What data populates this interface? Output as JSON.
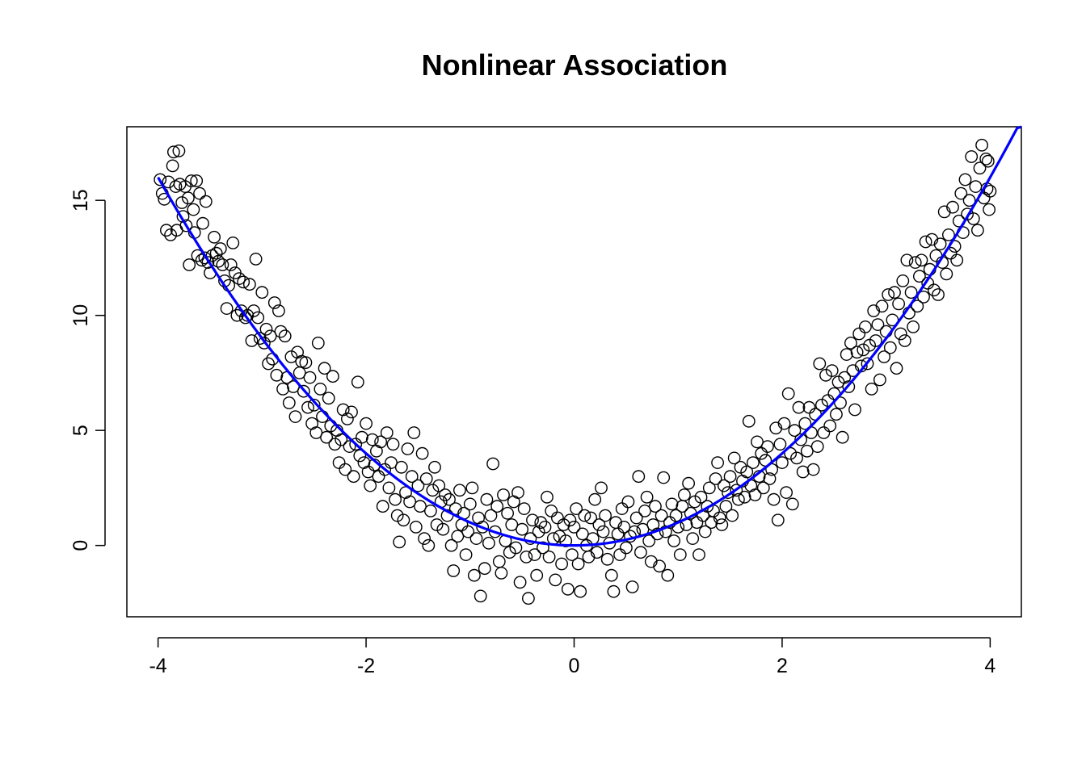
{
  "chart_data": {
    "type": "scatter",
    "title": "Nonlinear Association",
    "xlabel": "",
    "ylabel": "",
    "xlim": [
      -4.3,
      4.3
    ],
    "ylim": [
      -3.1,
      18.2
    ],
    "x_ticks": [
      -4,
      -2,
      0,
      2,
      4
    ],
    "x_tick_labels": [
      "-4",
      "-2",
      "0",
      "2",
      "4"
    ],
    "y_ticks": [
      0,
      5,
      10,
      15
    ],
    "y_tick_labels": [
      "0",
      "5",
      "10",
      "15"
    ],
    "grid": false,
    "legend": "none",
    "colors": {
      "points": "#000000",
      "fit_line": "#0000FF"
    },
    "fit_line": {
      "description_in_image": "curve",
      "y_equals": "x^2",
      "x_range": [
        -4.0,
        4.3
      ]
    },
    "points": [
      [
        -3.98,
        15.9
      ],
      [
        -3.96,
        15.3
      ],
      [
        -3.94,
        15.05
      ],
      [
        -3.92,
        13.7
      ],
      [
        -3.9,
        15.8
      ],
      [
        -3.88,
        13.5
      ],
      [
        -3.86,
        16.5
      ],
      [
        -3.85,
        17.1
      ],
      [
        -3.83,
        15.6
      ],
      [
        -3.82,
        13.7
      ],
      [
        -3.8,
        17.15
      ],
      [
        -3.79,
        15.7
      ],
      [
        -3.77,
        14.9
      ],
      [
        -3.76,
        14.3
      ],
      [
        -3.74,
        15.6
      ],
      [
        -3.73,
        13.9
      ],
      [
        -3.71,
        15.1
      ],
      [
        -3.7,
        12.2
      ],
      [
        -3.68,
        15.85
      ],
      [
        -3.66,
        14.6
      ],
      [
        -3.65,
        13.6
      ],
      [
        -3.63,
        15.85
      ],
      [
        -3.62,
        12.6
      ],
      [
        -3.6,
        15.3
      ],
      [
        -3.58,
        12.4
      ],
      [
        -3.57,
        14.0
      ],
      [
        -3.55,
        12.5
      ],
      [
        -3.54,
        14.95
      ],
      [
        -3.52,
        12.3
      ],
      [
        -3.5,
        11.85
      ],
      [
        -3.48,
        12.6
      ],
      [
        -3.46,
        13.4
      ],
      [
        -3.44,
        12.7
      ],
      [
        -3.42,
        12.35
      ],
      [
        -3.4,
        12.9
      ],
      [
        -3.38,
        12.2
      ],
      [
        -3.36,
        11.5
      ],
      [
        -3.34,
        10.3
      ],
      [
        -3.32,
        11.3
      ],
      [
        -3.3,
        12.2
      ],
      [
        -3.28,
        13.15
      ],
      [
        -3.26,
        11.85
      ],
      [
        -3.24,
        10.0
      ],
      [
        -3.22,
        11.6
      ],
      [
        -3.2,
        10.2
      ],
      [
        -3.18,
        11.45
      ],
      [
        -3.16,
        9.9
      ],
      [
        -3.14,
        10.0
      ],
      [
        -3.12,
        11.35
      ],
      [
        -3.1,
        8.9
      ],
      [
        -3.08,
        10.2
      ],
      [
        -3.06,
        12.45
      ],
      [
        -3.04,
        9.9
      ],
      [
        -3.02,
        9.0
      ],
      [
        -3.0,
        11.0
      ],
      [
        -2.98,
        8.8
      ],
      [
        -2.96,
        9.4
      ],
      [
        -2.94,
        7.9
      ],
      [
        -2.92,
        9.1
      ],
      [
        -2.9,
        8.1
      ],
      [
        -2.88,
        10.55
      ],
      [
        -2.86,
        7.4
      ],
      [
        -2.84,
        10.2
      ],
      [
        -2.82,
        9.3
      ],
      [
        -2.8,
        6.8
      ],
      [
        -2.78,
        9.1
      ],
      [
        -2.76,
        7.3
      ],
      [
        -2.74,
        6.2
      ],
      [
        -2.72,
        8.2
      ],
      [
        -2.7,
        6.9
      ],
      [
        -2.68,
        5.6
      ],
      [
        -2.66,
        8.4
      ],
      [
        -2.64,
        7.5
      ],
      [
        -2.62,
        8.0
      ],
      [
        -2.6,
        6.7
      ],
      [
        -2.58,
        7.95
      ],
      [
        -2.56,
        6.0
      ],
      [
        -2.54,
        7.3
      ],
      [
        -2.52,
        5.3
      ],
      [
        -2.5,
        6.1
      ],
      [
        -2.48,
        4.9
      ],
      [
        -2.46,
        8.8
      ],
      [
        -2.44,
        6.8
      ],
      [
        -2.42,
        5.6
      ],
      [
        -2.4,
        7.7
      ],
      [
        -2.38,
        4.7
      ],
      [
        -2.36,
        6.4
      ],
      [
        -2.34,
        5.2
      ],
      [
        -2.32,
        7.35
      ],
      [
        -2.3,
        4.4
      ],
      [
        -2.28,
        5.0
      ],
      [
        -2.26,
        3.6
      ],
      [
        -2.24,
        4.6
      ],
      [
        -2.22,
        5.9
      ],
      [
        -2.2,
        3.3
      ],
      [
        -2.18,
        5.5
      ],
      [
        -2.16,
        4.3
      ],
      [
        -2.14,
        5.8
      ],
      [
        -2.12,
        3.0
      ],
      [
        -2.1,
        4.4
      ],
      [
        -2.08,
        7.1
      ],
      [
        -2.06,
        3.9
      ],
      [
        -2.04,
        4.7
      ],
      [
        -2.02,
        3.6
      ],
      [
        -2.0,
        5.3
      ],
      [
        -1.98,
        3.2
      ],
      [
        -1.96,
        2.6
      ],
      [
        -1.94,
        4.6
      ],
      [
        -1.92,
        3.5
      ],
      [
        -1.9,
        4.1
      ],
      [
        -1.88,
        3.0
      ],
      [
        -1.86,
        4.5
      ],
      [
        -1.84,
        1.7
      ],
      [
        -1.82,
        3.3
      ],
      [
        -1.8,
        4.9
      ],
      [
        -1.78,
        2.5
      ],
      [
        -1.76,
        3.6
      ],
      [
        -1.74,
        4.4
      ],
      [
        -1.72,
        2.0
      ],
      [
        -1.7,
        1.3
      ],
      [
        -1.68,
        0.15
      ],
      [
        -1.66,
        3.4
      ],
      [
        -1.64,
        1.1
      ],
      [
        -1.62,
        2.3
      ],
      [
        -1.6,
        4.2
      ],
      [
        -1.58,
        1.9
      ],
      [
        -1.56,
        3.0
      ],
      [
        -1.54,
        4.9
      ],
      [
        -1.52,
        0.8
      ],
      [
        -1.5,
        2.6
      ],
      [
        -1.48,
        1.7
      ],
      [
        -1.46,
        4.0
      ],
      [
        -1.44,
        0.3
      ],
      [
        -1.42,
        2.9
      ],
      [
        -1.4,
        0.0
      ],
      [
        -1.38,
        1.5
      ],
      [
        -1.36,
        2.4
      ],
      [
        -1.34,
        3.4
      ],
      [
        -1.32,
        0.9
      ],
      [
        -1.3,
        2.6
      ],
      [
        -1.28,
        1.9
      ],
      [
        -1.26,
        0.7
      ],
      [
        -1.24,
        2.2
      ],
      [
        -1.22,
        1.3
      ],
      [
        -1.2,
        2.0
      ],
      [
        -1.18,
        0.0
      ],
      [
        -1.16,
        -1.1
      ],
      [
        -1.14,
        1.6
      ],
      [
        -1.12,
        0.4
      ],
      [
        -1.1,
        2.4
      ],
      [
        -1.08,
        0.9
      ],
      [
        -1.06,
        1.4
      ],
      [
        -1.04,
        -0.4
      ],
      [
        -1.02,
        0.6
      ],
      [
        -1.0,
        1.8
      ],
      [
        -0.98,
        2.5
      ],
      [
        -0.96,
        -1.3
      ],
      [
        -0.94,
        0.3
      ],
      [
        -0.92,
        1.2
      ],
      [
        -0.9,
        -2.2
      ],
      [
        -0.88,
        0.8
      ],
      [
        -0.86,
        -1.0
      ],
      [
        -0.84,
        2.0
      ],
      [
        -0.82,
        0.1
      ],
      [
        -0.8,
        1.3
      ],
      [
        -0.78,
        3.55
      ],
      [
        -0.76,
        0.6
      ],
      [
        -0.74,
        1.7
      ],
      [
        -0.72,
        -0.7
      ],
      [
        -0.7,
        -1.2
      ],
      [
        -0.68,
        2.2
      ],
      [
        -0.66,
        0.2
      ],
      [
        -0.64,
        1.4
      ],
      [
        -0.62,
        -0.3
      ],
      [
        -0.6,
        0.9
      ],
      [
        -0.58,
        1.9
      ],
      [
        -0.56,
        -0.1
      ],
      [
        -0.54,
        2.3
      ],
      [
        -0.52,
        -1.6
      ],
      [
        -0.5,
        0.7
      ],
      [
        -0.48,
        1.6
      ],
      [
        -0.46,
        -0.5
      ],
      [
        -0.44,
        -2.3
      ],
      [
        -0.42,
        0.3
      ],
      [
        -0.4,
        1.1
      ],
      [
        -0.38,
        -0.4
      ],
      [
        -0.36,
        -1.3
      ],
      [
        -0.34,
        0.6
      ],
      [
        -0.32,
        1.0
      ],
      [
        -0.3,
        -0.1
      ],
      [
        -0.28,
        0.8
      ],
      [
        -0.26,
        2.1
      ],
      [
        -0.24,
        -0.5
      ],
      [
        -0.22,
        1.5
      ],
      [
        -0.2,
        0.3
      ],
      [
        -0.18,
        -1.5
      ],
      [
        -0.16,
        1.2
      ],
      [
        -0.14,
        0.4
      ],
      [
        -0.12,
        -0.8
      ],
      [
        -0.1,
        0.9
      ],
      [
        -0.08,
        0.2
      ],
      [
        -0.06,
        -1.9
      ],
      [
        -0.04,
        1.1
      ],
      [
        -0.02,
        -0.4
      ],
      [
        0.0,
        0.8
      ],
      [
        0.02,
        1.6
      ],
      [
        0.04,
        -0.8
      ],
      [
        0.06,
        -2.0
      ],
      [
        0.08,
        0.5
      ],
      [
        0.1,
        1.3
      ],
      [
        0.12,
        0.0
      ],
      [
        0.14,
        -0.5
      ],
      [
        0.16,
        1.2
      ],
      [
        0.18,
        0.3
      ],
      [
        0.2,
        2.0
      ],
      [
        0.22,
        -0.3
      ],
      [
        0.24,
        0.9
      ],
      [
        0.26,
        2.5
      ],
      [
        0.28,
        0.6
      ],
      [
        0.3,
        1.3
      ],
      [
        0.32,
        -0.6
      ],
      [
        0.34,
        0.1
      ],
      [
        0.36,
        -1.3
      ],
      [
        0.38,
        -2.0
      ],
      [
        0.4,
        1.0
      ],
      [
        0.42,
        0.5
      ],
      [
        0.44,
        -0.4
      ],
      [
        0.46,
        1.6
      ],
      [
        0.48,
        0.8
      ],
      [
        0.5,
        -0.1
      ],
      [
        0.52,
        1.9
      ],
      [
        0.54,
        0.4
      ],
      [
        0.56,
        -1.8
      ],
      [
        0.58,
        0.6
      ],
      [
        0.6,
        1.2
      ],
      [
        0.62,
        3.0
      ],
      [
        0.64,
        -0.3
      ],
      [
        0.66,
        0.7
      ],
      [
        0.68,
        1.5
      ],
      [
        0.7,
        2.1
      ],
      [
        0.72,
        0.2
      ],
      [
        0.74,
        -0.7
      ],
      [
        0.76,
        0.9
      ],
      [
        0.78,
        1.7
      ],
      [
        0.8,
        0.5
      ],
      [
        0.82,
        -0.9
      ],
      [
        0.84,
        1.3
      ],
      [
        0.86,
        2.95
      ],
      [
        0.88,
        0.6
      ],
      [
        0.9,
        -1.3
      ],
      [
        0.92,
        1.0
      ],
      [
        0.94,
        1.8
      ],
      [
        0.96,
        0.2
      ],
      [
        0.98,
        1.3
      ],
      [
        1.0,
        0.8
      ],
      [
        1.02,
        -0.4
      ],
      [
        1.04,
        1.7
      ],
      [
        1.06,
        2.2
      ],
      [
        1.08,
        0.9
      ],
      [
        1.1,
        2.7
      ],
      [
        1.12,
        1.4
      ],
      [
        1.14,
        0.3
      ],
      [
        1.16,
        1.9
      ],
      [
        1.18,
        1.0
      ],
      [
        1.2,
        -0.4
      ],
      [
        1.22,
        2.1
      ],
      [
        1.24,
        1.3
      ],
      [
        1.26,
        0.6
      ],
      [
        1.28,
        1.7
      ],
      [
        1.3,
        2.5
      ],
      [
        1.32,
        1.0
      ],
      [
        1.34,
        1.5
      ],
      [
        1.36,
        2.9
      ],
      [
        1.38,
        3.6
      ],
      [
        1.4,
        1.2
      ],
      [
        1.42,
        0.9
      ],
      [
        1.44,
        2.6
      ],
      [
        1.46,
        1.7
      ],
      [
        1.48,
        2.3
      ],
      [
        1.5,
        3.0
      ],
      [
        1.52,
        1.3
      ],
      [
        1.54,
        3.8
      ],
      [
        1.56,
        2.4
      ],
      [
        1.58,
        2.0
      ],
      [
        1.6,
        3.4
      ],
      [
        1.62,
        2.8
      ],
      [
        1.64,
        2.1
      ],
      [
        1.66,
        3.2
      ],
      [
        1.68,
        5.4
      ],
      [
        1.7,
        2.6
      ],
      [
        1.72,
        3.6
      ],
      [
        1.74,
        2.2
      ],
      [
        1.76,
        4.5
      ],
      [
        1.78,
        3.0
      ],
      [
        1.8,
        4.0
      ],
      [
        1.82,
        2.5
      ],
      [
        1.84,
        3.7
      ],
      [
        1.86,
        4.3
      ],
      [
        1.88,
        2.9
      ],
      [
        1.9,
        3.3
      ],
      [
        1.92,
        2.0
      ],
      [
        1.94,
        5.1
      ],
      [
        1.96,
        1.1
      ],
      [
        1.98,
        4.4
      ],
      [
        2.0,
        3.6
      ],
      [
        2.02,
        5.3
      ],
      [
        2.04,
        2.3
      ],
      [
        2.06,
        6.6
      ],
      [
        2.08,
        4.0
      ],
      [
        2.1,
        1.8
      ],
      [
        2.12,
        5.0
      ],
      [
        2.14,
        3.8
      ],
      [
        2.16,
        6.0
      ],
      [
        2.18,
        4.6
      ],
      [
        2.2,
        3.2
      ],
      [
        2.22,
        5.3
      ],
      [
        2.24,
        4.1
      ],
      [
        2.26,
        6.0
      ],
      [
        2.28,
        4.9
      ],
      [
        2.3,
        3.3
      ],
      [
        2.32,
        5.7
      ],
      [
        2.34,
        4.3
      ],
      [
        2.36,
        7.9
      ],
      [
        2.38,
        6.1
      ],
      [
        2.4,
        4.9
      ],
      [
        2.42,
        7.4
      ],
      [
        2.44,
        6.3
      ],
      [
        2.46,
        5.2
      ],
      [
        2.48,
        7.6
      ],
      [
        2.5,
        6.6
      ],
      [
        2.52,
        5.7
      ],
      [
        2.54,
        7.1
      ],
      [
        2.56,
        6.2
      ],
      [
        2.58,
        4.7
      ],
      [
        2.6,
        7.3
      ],
      [
        2.62,
        8.3
      ],
      [
        2.64,
        6.9
      ],
      [
        2.66,
        8.8
      ],
      [
        2.68,
        7.6
      ],
      [
        2.7,
        5.9
      ],
      [
        2.72,
        8.4
      ],
      [
        2.74,
        9.2
      ],
      [
        2.76,
        7.8
      ],
      [
        2.78,
        8.5
      ],
      [
        2.8,
        9.5
      ],
      [
        2.82,
        7.9
      ],
      [
        2.84,
        8.7
      ],
      [
        2.86,
        6.8
      ],
      [
        2.88,
        10.2
      ],
      [
        2.9,
        8.9
      ],
      [
        2.92,
        9.6
      ],
      [
        2.94,
        7.2
      ],
      [
        2.96,
        10.4
      ],
      [
        2.98,
        8.2
      ],
      [
        3.0,
        9.3
      ],
      [
        3.02,
        10.9
      ],
      [
        3.04,
        8.6
      ],
      [
        3.06,
        9.8
      ],
      [
        3.08,
        11.0
      ],
      [
        3.1,
        7.7
      ],
      [
        3.12,
        10.5
      ],
      [
        3.14,
        9.2
      ],
      [
        3.16,
        11.5
      ],
      [
        3.18,
        8.9
      ],
      [
        3.2,
        12.4
      ],
      [
        3.22,
        10.1
      ],
      [
        3.24,
        11.0
      ],
      [
        3.26,
        9.5
      ],
      [
        3.28,
        12.3
      ],
      [
        3.3,
        10.4
      ],
      [
        3.32,
        11.7
      ],
      [
        3.34,
        12.4
      ],
      [
        3.36,
        10.8
      ],
      [
        3.38,
        13.2
      ],
      [
        3.4,
        11.4
      ],
      [
        3.42,
        12.0
      ],
      [
        3.44,
        13.3
      ],
      [
        3.46,
        11.1
      ],
      [
        3.48,
        12.6
      ],
      [
        3.5,
        10.9
      ],
      [
        3.52,
        13.1
      ],
      [
        3.54,
        12.3
      ],
      [
        3.56,
        14.5
      ],
      [
        3.58,
        11.8
      ],
      [
        3.6,
        13.5
      ],
      [
        3.62,
        12.7
      ],
      [
        3.64,
        14.7
      ],
      [
        3.66,
        13.0
      ],
      [
        3.68,
        12.4
      ],
      [
        3.7,
        14.1
      ],
      [
        3.72,
        15.3
      ],
      [
        3.74,
        13.6
      ],
      [
        3.76,
        15.9
      ],
      [
        3.78,
        14.4
      ],
      [
        3.8,
        15.0
      ],
      [
        3.82,
        16.9
      ],
      [
        3.84,
        14.2
      ],
      [
        3.86,
        15.6
      ],
      [
        3.88,
        13.7
      ],
      [
        3.9,
        16.4
      ],
      [
        3.92,
        17.4
      ],
      [
        3.94,
        15.1
      ],
      [
        3.96,
        16.8
      ],
      [
        3.97,
        15.5
      ],
      [
        3.98,
        16.7
      ],
      [
        3.99,
        14.6
      ],
      [
        4.0,
        15.4
      ]
    ]
  }
}
